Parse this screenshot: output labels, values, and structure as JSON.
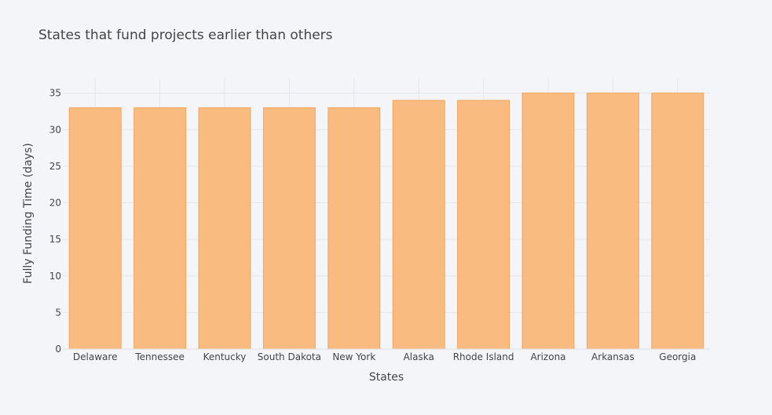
{
  "chart_data": {
    "type": "bar",
    "title": "States that fund projects earlier than others",
    "xlabel": "States",
    "ylabel": "Fully Funding Time (days)",
    "categories": [
      "Delaware",
      "Tennessee",
      "Kentucky",
      "South Dakota",
      "New York",
      "Alaska",
      "Rhode Island",
      "Arizona",
      "Arkansas",
      "Georgia"
    ],
    "values": [
      33,
      33,
      33,
      33,
      33,
      34,
      34,
      35,
      35,
      35
    ],
    "ylim": [
      0,
      37
    ],
    "yticks": [
      0,
      5,
      10,
      15,
      20,
      25,
      30,
      35
    ],
    "grid": true,
    "bar_color": "#f9bb7f",
    "bar_edge_color": "#f5a45a",
    "background_color": "#f4f5f9",
    "grid_color": "#e4e6ec"
  }
}
